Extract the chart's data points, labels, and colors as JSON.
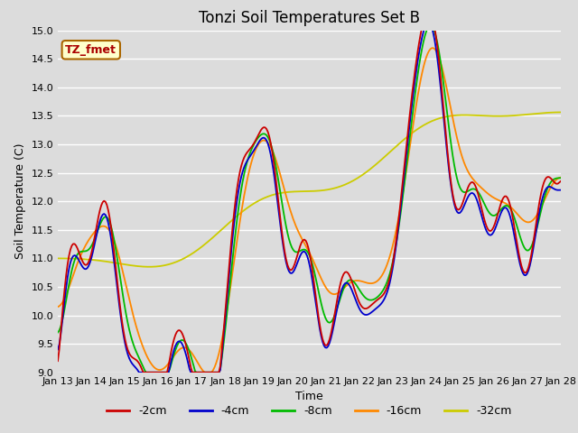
{
  "title": "Tonzi Soil Temperatures Set B",
  "xlabel": "Time",
  "ylabel": "Soil Temperature (C)",
  "ylim": [
    9.0,
    15.0
  ],
  "yticks": [
    9.0,
    9.5,
    10.0,
    10.5,
    11.0,
    11.5,
    12.0,
    12.5,
    13.0,
    13.5,
    14.0,
    14.5,
    15.0
  ],
  "x_labels": [
    "Jan 13",
    "Jan 14",
    "Jan 15",
    "Jan 16",
    "Jan 17",
    "Jan 18",
    "Jan 19",
    "Jan 20",
    "Jan 21",
    "Jan 22",
    "Jan 23",
    "Jan 24",
    "Jan 25",
    "Jan 26",
    "Jan 27",
    "Jan 28"
  ],
  "legend_label": "TZ_fmet",
  "line_colors": {
    "-2cm": "#cc0000",
    "-4cm": "#0000cc",
    "-8cm": "#00bb00",
    "-16cm": "#ff8800",
    "-32cm": "#cccc00"
  },
  "legend_entries": [
    "-2cm",
    "-4cm",
    "-8cm",
    "-16cm",
    "-32cm"
  ],
  "bg_color": "#dcdcdc",
  "title_fontsize": 12,
  "label_fontsize": 9,
  "tick_fontsize": 8
}
